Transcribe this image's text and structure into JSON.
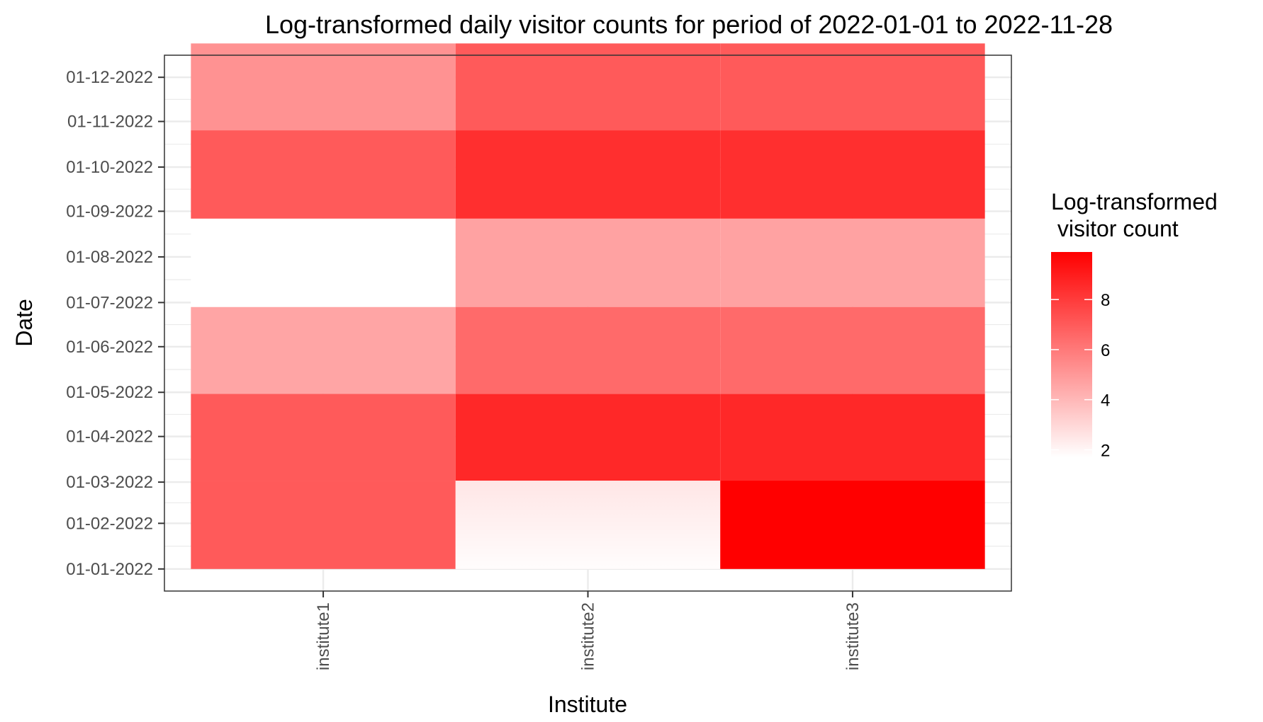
{
  "chart_data": {
    "type": "heatmap",
    "title": "Log-transformed daily visitor counts for period of 2022-01-01 to 2022-11-28",
    "xlabel": "Institute",
    "ylabel": "Date",
    "x_categories": [
      "institute1",
      "institute2",
      "institute3"
    ],
    "y_ticks": [
      "01-01-2022",
      "01-02-2022",
      "01-03-2022",
      "01-04-2022",
      "01-05-2022",
      "01-06-2022",
      "01-07-2022",
      "01-08-2022",
      "01-09-2022",
      "01-10-2022",
      "01-11-2022",
      "01-12-2022"
    ],
    "ylim": [
      "2021-12-17",
      "2022-12-16"
    ],
    "grid": true,
    "legend": {
      "title_line1": "Log-transformed",
      "title_line2": " visitor count",
      "position": "right",
      "ticks": [
        2,
        4,
        6,
        8
      ],
      "range": [
        1.7,
        9.9
      ],
      "low_color": "#ffffff",
      "high_color": "#ff0000"
    },
    "cells": [
      {
        "institute": "institute1",
        "start": "2022-01-01",
        "end": "2022-03-02",
        "value": 7.0
      },
      {
        "institute": "institute1",
        "start": "2022-03-02",
        "end": "2022-04-30",
        "value": 7.0
      },
      {
        "institute": "institute1",
        "start": "2022-04-30",
        "end": "2022-06-28",
        "value": 4.6
      },
      {
        "institute": "institute1",
        "start": "2022-06-28",
        "end": "2022-08-27",
        "value": 1.7
      },
      {
        "institute": "institute1",
        "start": "2022-08-27",
        "end": "2022-10-26",
        "value": 7.0
      },
      {
        "institute": "institute1",
        "start": "2022-10-26",
        "end": "2022-12-24",
        "value": 5.2
      },
      {
        "institute": "institute2",
        "start": "2022-01-01",
        "end": "2022-03-02",
        "value": 2.5
      },
      {
        "institute": "institute2",
        "start": "2022-03-02",
        "end": "2022-04-30",
        "value": 8.6
      },
      {
        "institute": "institute2",
        "start": "2022-04-30",
        "end": "2022-06-28",
        "value": 6.5
      },
      {
        "institute": "institute2",
        "start": "2022-06-28",
        "end": "2022-08-27",
        "value": 4.7
      },
      {
        "institute": "institute2",
        "start": "2022-08-27",
        "end": "2022-10-26",
        "value": 8.4
      },
      {
        "institute": "institute2",
        "start": "2022-10-26",
        "end": "2022-12-24",
        "value": 7.0
      },
      {
        "institute": "institute3",
        "start": "2022-01-01",
        "end": "2022-03-02",
        "value": 9.9
      },
      {
        "institute": "institute3",
        "start": "2022-03-02",
        "end": "2022-04-30",
        "value": 8.6
      },
      {
        "institute": "institute3",
        "start": "2022-04-30",
        "end": "2022-06-28",
        "value": 6.5
      },
      {
        "institute": "institute3",
        "start": "2022-06-28",
        "end": "2022-08-27",
        "value": 4.7
      },
      {
        "institute": "institute3",
        "start": "2022-08-27",
        "end": "2022-10-26",
        "value": 8.4
      },
      {
        "institute": "institute3",
        "start": "2022-10-26",
        "end": "2022-12-24",
        "value": 7.0
      }
    ]
  }
}
